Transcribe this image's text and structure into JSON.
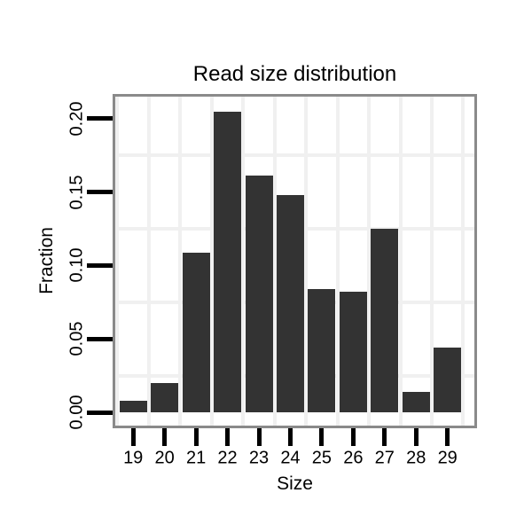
{
  "chart_data": {
    "type": "bar",
    "title": "Read size distribution",
    "xlabel": "Size",
    "ylabel": "Fraction",
    "categories": [
      "19",
      "20",
      "21",
      "22",
      "23",
      "24",
      "25",
      "26",
      "27",
      "28",
      "29"
    ],
    "values": [
      0.008,
      0.02,
      0.109,
      0.205,
      0.161,
      0.148,
      0.084,
      0.082,
      0.125,
      0.014,
      0.044
    ],
    "y_tick_labels": [
      "0.00",
      "0.05",
      "0.10",
      "0.15",
      "0.20"
    ],
    "y_tick_values": [
      0,
      0.05,
      0.1,
      0.15,
      0.2
    ],
    "ylim": [
      -0.009,
      0.215
    ],
    "grid": true,
    "minor_grid_values": [
      0.025,
      0.075,
      0.125,
      0.175
    ],
    "legend": "none",
    "colors": {
      "bar_fill": "#333333",
      "panel_border": "#8a8a8a",
      "grid_line": "#f0f0f0",
      "tick": "#000000",
      "text": "#000000",
      "background": "#ffffff"
    }
  }
}
